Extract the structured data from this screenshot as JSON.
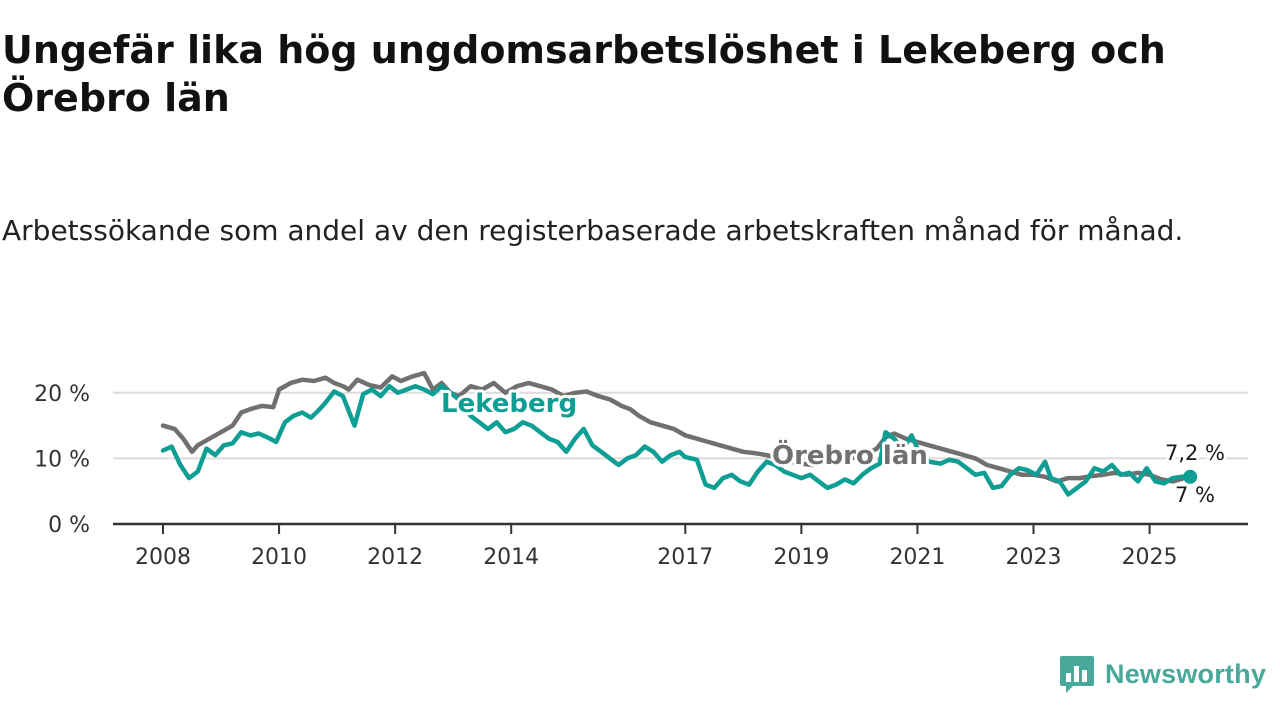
{
  "title": "Ungefär lika hög ungdomsarbetslöshet i Lekeberg och Örebro län",
  "subtitle": "Arbetssökande som andel av den registerbaserade arbetskraften månad för månad.",
  "brand": {
    "name": "Newsworthy",
    "icon": "bar-chart-chat-icon"
  },
  "colors": {
    "lekeberg": "#0f9e94",
    "orebro": "#707070",
    "grid": "#dcdcdc",
    "axis": "#333333",
    "brand": "#4aa89b"
  },
  "chart_data": {
    "type": "line",
    "title": "Ungefär lika hög ungdomsarbetslöshet i Lekeberg och Örebro län",
    "xlabel": "",
    "ylabel": "",
    "ylim": [
      0,
      25
    ],
    "xlim": [
      2008,
      2025.8
    ],
    "grid": true,
    "y_ticks": [
      {
        "value": 0,
        "label": "0 %"
      },
      {
        "value": 10,
        "label": "10 %"
      },
      {
        "value": 20,
        "label": "20 %"
      }
    ],
    "x_ticks": [
      {
        "value": 2008,
        "label": "2008"
      },
      {
        "value": 2010,
        "label": "2010"
      },
      {
        "value": 2012,
        "label": "2012"
      },
      {
        "value": 2014,
        "label": "2014"
      },
      {
        "value": 2017,
        "label": "2017"
      },
      {
        "value": 2019,
        "label": "2019"
      },
      {
        "value": 2021,
        "label": "2021"
      },
      {
        "value": 2023,
        "label": "2023"
      },
      {
        "value": 2025,
        "label": "2025"
      }
    ],
    "series": [
      {
        "name": "Örebro län",
        "label": "Örebro län",
        "label_anchor": {
          "x": 2019.8,
          "y": 10.0
        },
        "end_label": "7 %",
        "points": [
          [
            2008.0,
            15.0
          ],
          [
            2008.2,
            14.5
          ],
          [
            2008.35,
            13.0
          ],
          [
            2008.5,
            11.0
          ],
          [
            2008.6,
            12.0
          ],
          [
            2008.8,
            13.0
          ],
          [
            2009.0,
            14.0
          ],
          [
            2009.2,
            15.0
          ],
          [
            2009.35,
            17.0
          ],
          [
            2009.5,
            17.5
          ],
          [
            2009.7,
            18.0
          ],
          [
            2009.9,
            17.8
          ],
          [
            2010.0,
            20.5
          ],
          [
            2010.2,
            21.5
          ],
          [
            2010.4,
            22.0
          ],
          [
            2010.6,
            21.8
          ],
          [
            2010.8,
            22.3
          ],
          [
            2010.95,
            21.5
          ],
          [
            2011.1,
            21.0
          ],
          [
            2011.2,
            20.5
          ],
          [
            2011.35,
            22.0
          ],
          [
            2011.55,
            21.2
          ],
          [
            2011.75,
            20.8
          ],
          [
            2011.95,
            22.5
          ],
          [
            2012.1,
            21.8
          ],
          [
            2012.3,
            22.5
          ],
          [
            2012.5,
            23.0
          ],
          [
            2012.65,
            20.5
          ],
          [
            2012.8,
            21.5
          ],
          [
            2012.95,
            20.0
          ],
          [
            2013.1,
            19.5
          ],
          [
            2013.3,
            21.0
          ],
          [
            2013.5,
            20.5
          ],
          [
            2013.7,
            21.5
          ],
          [
            2013.9,
            20.0
          ],
          [
            2014.1,
            21.0
          ],
          [
            2014.3,
            21.5
          ],
          [
            2014.5,
            21.0
          ],
          [
            2014.7,
            20.5
          ],
          [
            2014.9,
            19.5
          ],
          [
            2015.1,
            20.0
          ],
          [
            2015.3,
            20.2
          ],
          [
            2015.5,
            19.5
          ],
          [
            2015.7,
            19.0
          ],
          [
            2015.9,
            18.0
          ],
          [
            2016.05,
            17.5
          ],
          [
            2016.2,
            16.5
          ],
          [
            2016.4,
            15.5
          ],
          [
            2016.6,
            15.0
          ],
          [
            2016.8,
            14.5
          ],
          [
            2017.0,
            13.5
          ],
          [
            2017.2,
            13.0
          ],
          [
            2017.4,
            12.5
          ],
          [
            2017.6,
            12.0
          ],
          [
            2017.8,
            11.5
          ],
          [
            2018.0,
            11.0
          ],
          [
            2018.2,
            10.8
          ],
          [
            2018.4,
            10.5
          ],
          [
            2018.6,
            10.0
          ],
          [
            2018.8,
            9.5
          ],
          [
            2019.0,
            9.2
          ],
          [
            2019.2,
            9.0
          ],
          [
            2019.4,
            9.3
          ],
          [
            2019.6,
            9.8
          ],
          [
            2019.8,
            10.2
          ],
          [
            2020.0,
            10.0
          ],
          [
            2020.1,
            10.5
          ],
          [
            2020.3,
            11.5
          ],
          [
            2020.45,
            13.2
          ],
          [
            2020.6,
            13.8
          ],
          [
            2020.8,
            13.0
          ],
          [
            2021.0,
            12.5
          ],
          [
            2021.2,
            12.0
          ],
          [
            2021.4,
            11.5
          ],
          [
            2021.6,
            11.0
          ],
          [
            2021.8,
            10.5
          ],
          [
            2022.0,
            10.0
          ],
          [
            2022.2,
            9.0
          ],
          [
            2022.4,
            8.5
          ],
          [
            2022.6,
            8.0
          ],
          [
            2022.8,
            7.5
          ],
          [
            2023.0,
            7.5
          ],
          [
            2023.2,
            7.2
          ],
          [
            2023.4,
            6.5
          ],
          [
            2023.6,
            7.0
          ],
          [
            2023.8,
            7.0
          ],
          [
            2024.0,
            7.3
          ],
          [
            2024.2,
            7.5
          ],
          [
            2024.4,
            7.8
          ],
          [
            2024.6,
            7.5
          ],
          [
            2024.8,
            7.8
          ],
          [
            2025.0,
            7.5
          ],
          [
            2025.2,
            6.8
          ],
          [
            2025.4,
            6.5
          ],
          [
            2025.6,
            7.0
          ]
        ]
      },
      {
        "name": "Lekeberg",
        "label": "Lekeberg",
        "label_anchor": {
          "x": 2014.2,
          "y": 16.8
        },
        "end_label": "7,2 %",
        "points": [
          [
            2008.0,
            11.2
          ],
          [
            2008.15,
            11.8
          ],
          [
            2008.3,
            9.0
          ],
          [
            2008.45,
            7.0
          ],
          [
            2008.6,
            8.0
          ],
          [
            2008.75,
            11.5
          ],
          [
            2008.9,
            10.5
          ],
          [
            2009.05,
            12.0
          ],
          [
            2009.2,
            12.3
          ],
          [
            2009.35,
            14.0
          ],
          [
            2009.5,
            13.5
          ],
          [
            2009.65,
            13.8
          ],
          [
            2009.8,
            13.2
          ],
          [
            2009.95,
            12.5
          ],
          [
            2010.1,
            15.5
          ],
          [
            2010.25,
            16.5
          ],
          [
            2010.4,
            17.0
          ],
          [
            2010.55,
            16.2
          ],
          [
            2010.7,
            17.5
          ],
          [
            2010.8,
            18.5
          ],
          [
            2010.95,
            20.2
          ],
          [
            2011.1,
            19.5
          ],
          [
            2011.3,
            15.0
          ],
          [
            2011.45,
            19.8
          ],
          [
            2011.6,
            20.5
          ],
          [
            2011.75,
            19.5
          ],
          [
            2011.9,
            21.0
          ],
          [
            2012.05,
            20.0
          ],
          [
            2012.2,
            20.5
          ],
          [
            2012.35,
            21.0
          ],
          [
            2012.5,
            20.5
          ],
          [
            2012.65,
            19.8
          ],
          [
            2012.8,
            21.0
          ],
          [
            2012.95,
            20.0
          ],
          [
            2013.1,
            19.0
          ],
          [
            2013.3,
            16.5
          ],
          [
            2013.45,
            15.5
          ],
          [
            2013.6,
            14.5
          ],
          [
            2013.75,
            15.5
          ],
          [
            2013.9,
            14.0
          ],
          [
            2014.05,
            14.5
          ],
          [
            2014.2,
            15.5
          ],
          [
            2014.35,
            15.0
          ],
          [
            2014.5,
            14.0
          ],
          [
            2014.65,
            13.0
          ],
          [
            2014.8,
            12.5
          ],
          [
            2014.95,
            11.0
          ],
          [
            2015.1,
            13.0
          ],
          [
            2015.25,
            14.5
          ],
          [
            2015.4,
            12.0
          ],
          [
            2015.55,
            11.0
          ],
          [
            2015.7,
            10.0
          ],
          [
            2015.85,
            9.0
          ],
          [
            2016.0,
            10.0
          ],
          [
            2016.15,
            10.5
          ],
          [
            2016.3,
            11.8
          ],
          [
            2016.45,
            11.0
          ],
          [
            2016.6,
            9.5
          ],
          [
            2016.75,
            10.5
          ],
          [
            2016.9,
            11.0
          ],
          [
            2017.0,
            10.2
          ],
          [
            2017.2,
            9.8
          ],
          [
            2017.35,
            6.0
          ],
          [
            2017.5,
            5.5
          ],
          [
            2017.65,
            7.0
          ],
          [
            2017.8,
            7.5
          ],
          [
            2017.95,
            6.5
          ],
          [
            2018.1,
            6.0
          ],
          [
            2018.25,
            8.0
          ],
          [
            2018.4,
            9.5
          ],
          [
            2018.55,
            9.0
          ],
          [
            2018.7,
            8.0
          ],
          [
            2018.85,
            7.5
          ],
          [
            2019.0,
            7.0
          ],
          [
            2019.15,
            7.5
          ],
          [
            2019.3,
            6.5
          ],
          [
            2019.45,
            5.5
          ],
          [
            2019.6,
            6.0
          ],
          [
            2019.75,
            6.8
          ],
          [
            2019.9,
            6.2
          ],
          [
            2020.05,
            7.5
          ],
          [
            2020.2,
            8.5
          ],
          [
            2020.35,
            9.2
          ],
          [
            2020.45,
            14.0
          ],
          [
            2020.6,
            13.0
          ],
          [
            2020.75,
            11.5
          ],
          [
            2020.9,
            13.5
          ],
          [
            2021.05,
            10.5
          ],
          [
            2021.2,
            9.5
          ],
          [
            2021.4,
            9.2
          ],
          [
            2021.55,
            9.8
          ],
          [
            2021.7,
            9.5
          ],
          [
            2021.85,
            8.5
          ],
          [
            2022.0,
            7.5
          ],
          [
            2022.15,
            7.8
          ],
          [
            2022.3,
            5.5
          ],
          [
            2022.45,
            5.8
          ],
          [
            2022.6,
            7.5
          ],
          [
            2022.75,
            8.5
          ],
          [
            2022.9,
            8.2
          ],
          [
            2023.05,
            7.5
          ],
          [
            2023.2,
            9.5
          ],
          [
            2023.3,
            7.0
          ],
          [
            2023.45,
            6.5
          ],
          [
            2023.6,
            4.5
          ],
          [
            2023.75,
            5.5
          ],
          [
            2023.9,
            6.5
          ],
          [
            2024.05,
            8.5
          ],
          [
            2024.2,
            8.0
          ],
          [
            2024.35,
            9.0
          ],
          [
            2024.5,
            7.5
          ],
          [
            2024.65,
            7.8
          ],
          [
            2024.8,
            6.5
          ],
          [
            2024.95,
            8.5
          ],
          [
            2025.1,
            6.5
          ],
          [
            2025.25,
            6.2
          ],
          [
            2025.4,
            7.0
          ],
          [
            2025.55,
            7.2
          ],
          [
            2025.7,
            7.2
          ]
        ]
      }
    ]
  }
}
